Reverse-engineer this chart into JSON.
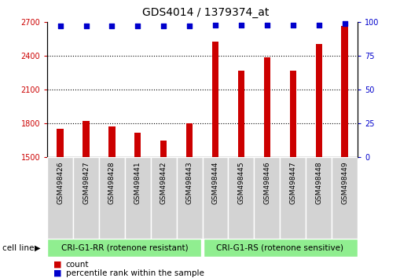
{
  "title": "GDS4014 / 1379374_at",
  "samples": [
    "GSM498426",
    "GSM498427",
    "GSM498428",
    "GSM498441",
    "GSM498442",
    "GSM498443",
    "GSM498444",
    "GSM498445",
    "GSM498446",
    "GSM498447",
    "GSM498448",
    "GSM498449"
  ],
  "counts": [
    1755,
    1820,
    1770,
    1715,
    1650,
    1800,
    2530,
    2270,
    2390,
    2270,
    2510,
    2670
  ],
  "percentile_ranks": [
    97,
    97,
    97,
    97,
    97,
    97,
    98,
    98,
    98,
    98,
    98,
    99
  ],
  "bar_color": "#cc0000",
  "dot_color": "#0000cc",
  "ylim_left": [
    1500,
    2700
  ],
  "ylim_right": [
    0,
    100
  ],
  "yticks_left": [
    1500,
    1800,
    2100,
    2400,
    2700
  ],
  "yticks_right": [
    0,
    25,
    50,
    75,
    100
  ],
  "group1_label": "CRI-G1-RR (rotenone resistant)",
  "group2_label": "CRI-G1-RS (rotenone sensitive)",
  "group1_count": 6,
  "group2_count": 6,
  "cell_line_label": "cell line",
  "legend_count_label": "count",
  "legend_pct_label": "percentile rank within the sample",
  "group_bg_color": "#90ee90",
  "xlabel_bg_color": "#d3d3d3",
  "title_fontsize": 10,
  "tick_label_fontsize": 7,
  "left_tick_color": "#cc0000",
  "right_tick_color": "#0000cc",
  "bar_width": 0.25
}
